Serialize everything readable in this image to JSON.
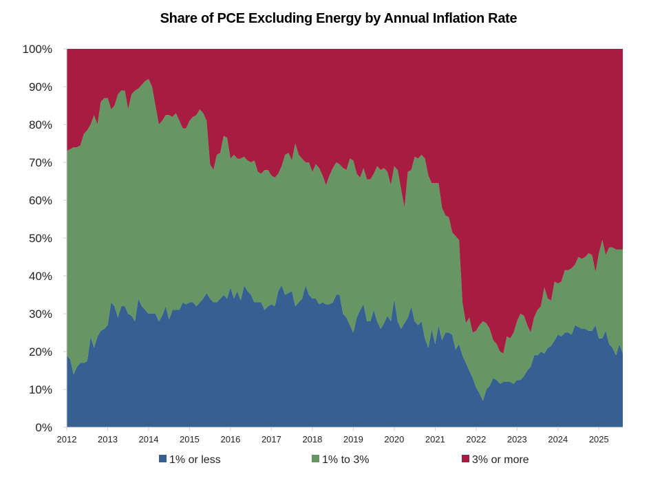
{
  "chart_data": {
    "type": "area",
    "stacked": true,
    "title": "Share of PCE Excluding Energy by Annual Inflation Rate",
    "xlabel": "",
    "ylabel": "",
    "x_start": "2012-01",
    "x_frequency": "monthly",
    "x_tick_labels": [
      "2012",
      "2013",
      "2014",
      "2015",
      "2016",
      "2017",
      "2018",
      "2019",
      "2020",
      "2021",
      "2022",
      "2023",
      "2024",
      "2025"
    ],
    "y_tick_labels": [
      "0%",
      "10%",
      "20%",
      "30%",
      "40%",
      "50%",
      "60%",
      "70%",
      "80%",
      "90%",
      "100%"
    ],
    "ylim": [
      0,
      100
    ],
    "legend_position": "bottom",
    "grid": false,
    "series": [
      {
        "name": "1% or less",
        "color": "#376092",
        "values": [
          19,
          18,
          14,
          16,
          17,
          17,
          17.5,
          24,
          21,
          24,
          25.5,
          26,
          27,
          33,
          32,
          29,
          32,
          32,
          30,
          29.5,
          28,
          34,
          32,
          31,
          30,
          30,
          30,
          28,
          29.5,
          32,
          28.5,
          31,
          31,
          31,
          33,
          32.5,
          33,
          33,
          32,
          33,
          34,
          35.5,
          34,
          33,
          33,
          34,
          35,
          34,
          37,
          34,
          36,
          33.5,
          37.5,
          36,
          35,
          33,
          33,
          33,
          31,
          32,
          32.5,
          32,
          36,
          37.5,
          35,
          35.5,
          36,
          32,
          33,
          34,
          37.5,
          35,
          34,
          34,
          32.5,
          33,
          32.5,
          32.5,
          33,
          35,
          35,
          30,
          29,
          27,
          25,
          29,
          31,
          32.5,
          28,
          28,
          31,
          28,
          26,
          27.5,
          29.5,
          28,
          34,
          28,
          26,
          27.5,
          29,
          32,
          28,
          27,
          28,
          23.5,
          21,
          26,
          22,
          27,
          23,
          25,
          25,
          24.5,
          20.5,
          22,
          19,
          17,
          15,
          13,
          10.5,
          9,
          7,
          10,
          11,
          13,
          12.5,
          11.5,
          12,
          12,
          12,
          11.5,
          12.5,
          12.5,
          13.5,
          15,
          16,
          19,
          19,
          20,
          19.5,
          21,
          21.5,
          23,
          24.5,
          24,
          25,
          25,
          24.5,
          27,
          26.5,
          26,
          26,
          25.5,
          25.5,
          27,
          23.5,
          23.5,
          25.5,
          22,
          21,
          19,
          22,
          19.5
        ]
      },
      {
        "name": "1% to 3%",
        "color": "#669663",
        "values": [
          54,
          55.5,
          60,
          58,
          57.5,
          60.5,
          61,
          56,
          61.5,
          56,
          60.5,
          61,
          60,
          51,
          53,
          59,
          57,
          57,
          54,
          58.5,
          61,
          55.5,
          58.5,
          60.5,
          62,
          60,
          55,
          52,
          51.5,
          50.5,
          54,
          51,
          52,
          50,
          46,
          46.5,
          48,
          49,
          50.5,
          51,
          49,
          45.5,
          35.5,
          35,
          39,
          38.5,
          42,
          42.5,
          34,
          38,
          35,
          37.5,
          34,
          34.5,
          35,
          37.5,
          34.5,
          34,
          37,
          36,
          34,
          34,
          31,
          31.5,
          37,
          37,
          34.5,
          43,
          39,
          37,
          32.5,
          35,
          33.5,
          35.5,
          36,
          33.5,
          31.5,
          34,
          35.5,
          35,
          34.5,
          38.5,
          39,
          44,
          45.5,
          38,
          35,
          36,
          37.5,
          37.5,
          36,
          41,
          42,
          41,
          38,
          36,
          35,
          40,
          37,
          30.5,
          38.5,
          36,
          43.5,
          44,
          44,
          47.5,
          45.5,
          38.5,
          42.5,
          37.5,
          35,
          31,
          30.5,
          27,
          30,
          27.5,
          14,
          10.5,
          14,
          12,
          15,
          18,
          21,
          17.5,
          15,
          10,
          9.5,
          8.5,
          7.5,
          12,
          11.5,
          13.5,
          15.5,
          17.5,
          16,
          12,
          9,
          10,
          12,
          12,
          17.5,
          13,
          12,
          15.5,
          13.5,
          14.5,
          16.5,
          16.5,
          17.5,
          16,
          18.5,
          18.5,
          19,
          20.5,
          20,
          14,
          22.5,
          26,
          20,
          25.5,
          26.5,
          28,
          25,
          27.5
        ]
      },
      {
        "name": "3% or more",
        "color": "#A71D42",
        "values": [
          27,
          26.5,
          26,
          26,
          25.5,
          22.5,
          21.5,
          20,
          17.5,
          20,
          14,
          13,
          13,
          16,
          15,
          12,
          11,
          11,
          16,
          12,
          11,
          10.5,
          9.5,
          8.5,
          8,
          10,
          15,
          20,
          19,
          17.5,
          17.5,
          18,
          17,
          19,
          21,
          21,
          19,
          18,
          17.5,
          16,
          17,
          19,
          30.5,
          32,
          28,
          27.5,
          23,
          23.5,
          29,
          28,
          29,
          29,
          28.5,
          29.5,
          30,
          29.5,
          32.5,
          33,
          32,
          32,
          33.5,
          34,
          33,
          31,
          28,
          27.5,
          29.5,
          25,
          28,
          29,
          30,
          30,
          32.5,
          30.5,
          31.5,
          33.5,
          36,
          33.5,
          31.5,
          30,
          30.5,
          31.5,
          32,
          29,
          29.5,
          33,
          34,
          31.5,
          34.5,
          34.5,
          33,
          31,
          32,
          31.5,
          32.5,
          36,
          31,
          32,
          37,
          42,
          32.5,
          32,
          28.5,
          29,
          28,
          29,
          33.5,
          35.5,
          35.5,
          35.5,
          42,
          44,
          44.5,
          48.5,
          49.5,
          50.5,
          67,
          72.5,
          71,
          75,
          74.5,
          73,
          72,
          72.5,
          74,
          77,
          78,
          80,
          80.5,
          76,
          76.5,
          75,
          72,
          70,
          70.5,
          73,
          75,
          71,
          69,
          68,
          63,
          66,
          66.5,
          61.5,
          62,
          61.5,
          58.5,
          58.5,
          58,
          57,
          55,
          55.5,
          55,
          54,
          54.5,
          59,
          54,
          50.5,
          54.5,
          52.5,
          52.5,
          53,
          53,
          53
        ]
      }
    ]
  }
}
